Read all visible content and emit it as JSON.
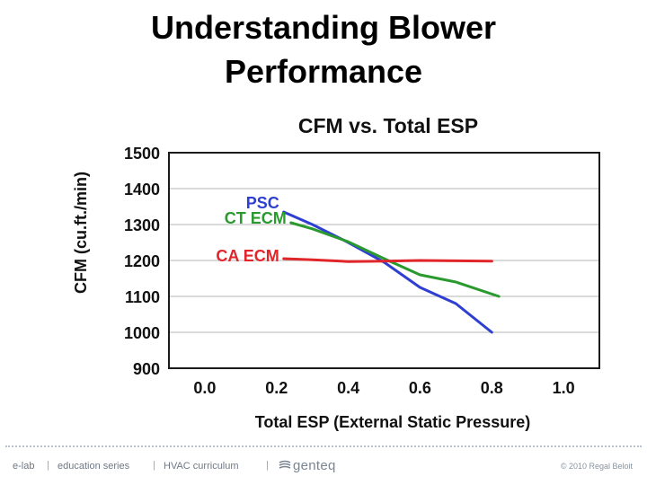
{
  "slide": {
    "title_line1": "Understanding Blower",
    "title_line2": "Performance"
  },
  "chart_data": {
    "type": "line",
    "title": "CFM vs. Total ESP",
    "xlabel": "Total ESP (External Static Pressure)",
    "ylabel": "CFM (cu.ft./min)",
    "xlim": [
      -0.1,
      1.1
    ],
    "ylim": [
      900,
      1500
    ],
    "xticks": [
      "0.0",
      "0.2",
      "0.4",
      "0.6",
      "0.8",
      "1.0"
    ],
    "xtick_values": [
      0.0,
      0.2,
      0.4,
      0.6,
      0.8,
      1.0
    ],
    "yticks": [
      "900",
      "1000",
      "1100",
      "1200",
      "1300",
      "1400",
      "1500"
    ],
    "ytick_values": [
      900,
      1000,
      1100,
      1200,
      1300,
      1400,
      1500
    ],
    "grid": "horizontal",
    "series": [
      {
        "name": "PSC",
        "color": "#2f3fd1",
        "points": [
          [
            0.22,
            1335
          ],
          [
            0.3,
            1300
          ],
          [
            0.4,
            1250
          ],
          [
            0.5,
            1195
          ],
          [
            0.6,
            1125
          ],
          [
            0.7,
            1080
          ],
          [
            0.8,
            1000
          ]
        ]
      },
      {
        "name": "CT ECM",
        "color": "#2a9a2f",
        "points": [
          [
            0.24,
            1305
          ],
          [
            0.3,
            1288
          ],
          [
            0.4,
            1252
          ],
          [
            0.5,
            1205
          ],
          [
            0.6,
            1160
          ],
          [
            0.7,
            1140
          ],
          [
            0.82,
            1100
          ]
        ]
      },
      {
        "name": "CA ECM",
        "color": "#e0262a",
        "points": [
          [
            0.22,
            1205
          ],
          [
            0.3,
            1202
          ],
          [
            0.4,
            1197
          ],
          [
            0.5,
            1198
          ],
          [
            0.6,
            1200
          ],
          [
            0.7,
            1199
          ],
          [
            0.8,
            1198
          ]
        ]
      }
    ]
  },
  "footer": {
    "item1": "e-lab",
    "item2": "education series",
    "item3": "HVAC curriculum",
    "separator": "|",
    "brand": "genteq",
    "copyright": "© 2010 Regal Beloit"
  }
}
